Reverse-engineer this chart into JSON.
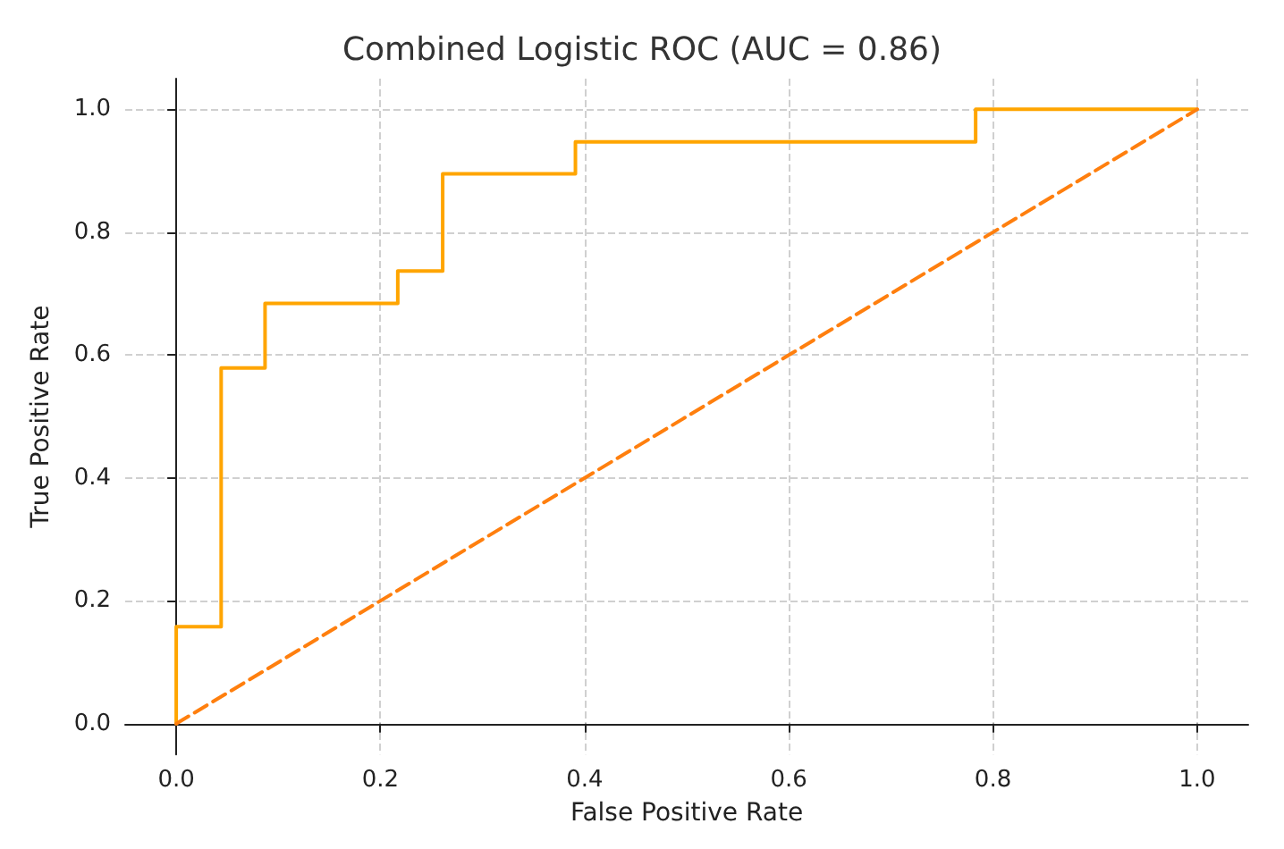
{
  "chart_data": {
    "type": "line",
    "title": "Combined Logistic ROC (AUC = 0.86)",
    "xlabel": "False Positive Rate",
    "ylabel": "True Positive Rate",
    "series": [
      {
        "color": "#ffa500",
        "line_style": "solid",
        "x": [
          0,
          0,
          0.044,
          0.044,
          0.087,
          0.087,
          0.217,
          0.217,
          0.261,
          0.261,
          0.391,
          0.391,
          0.783,
          0.783,
          1
        ],
        "values": [
          0,
          0.158,
          0.158,
          0.579,
          0.579,
          0.684,
          0.684,
          0.737,
          0.737,
          0.895,
          0.895,
          0.947,
          0.947,
          1,
          1
        ]
      },
      {
        "color": "#ff7f0e",
        "line_style": "dashed",
        "x": [
          0,
          1
        ],
        "values": [
          0,
          1
        ]
      }
    ],
    "xlim": [
      -0.05,
      1.05
    ],
    "ylim": [
      -0.05,
      1.05
    ],
    "xticks": [
      {
        "value": 0,
        "label": "0.0"
      },
      {
        "value": 0.2,
        "label": "0.2"
      },
      {
        "value": 0.4,
        "label": "0.4"
      },
      {
        "value": 0.6,
        "label": "0.6"
      },
      {
        "value": 0.8,
        "label": "0.8"
      },
      {
        "value": 1,
        "label": "1.0"
      }
    ],
    "yticks": [
      {
        "value": 0,
        "label": "0.0"
      },
      {
        "value": 0.2,
        "label": "0.2"
      },
      {
        "value": 0.4,
        "label": "0.4"
      },
      {
        "value": 0.6,
        "label": "0.6"
      },
      {
        "value": 0.8,
        "label": "0.8"
      },
      {
        "value": 1,
        "label": "1.0"
      }
    ],
    "grid": true,
    "marker": "none"
  }
}
